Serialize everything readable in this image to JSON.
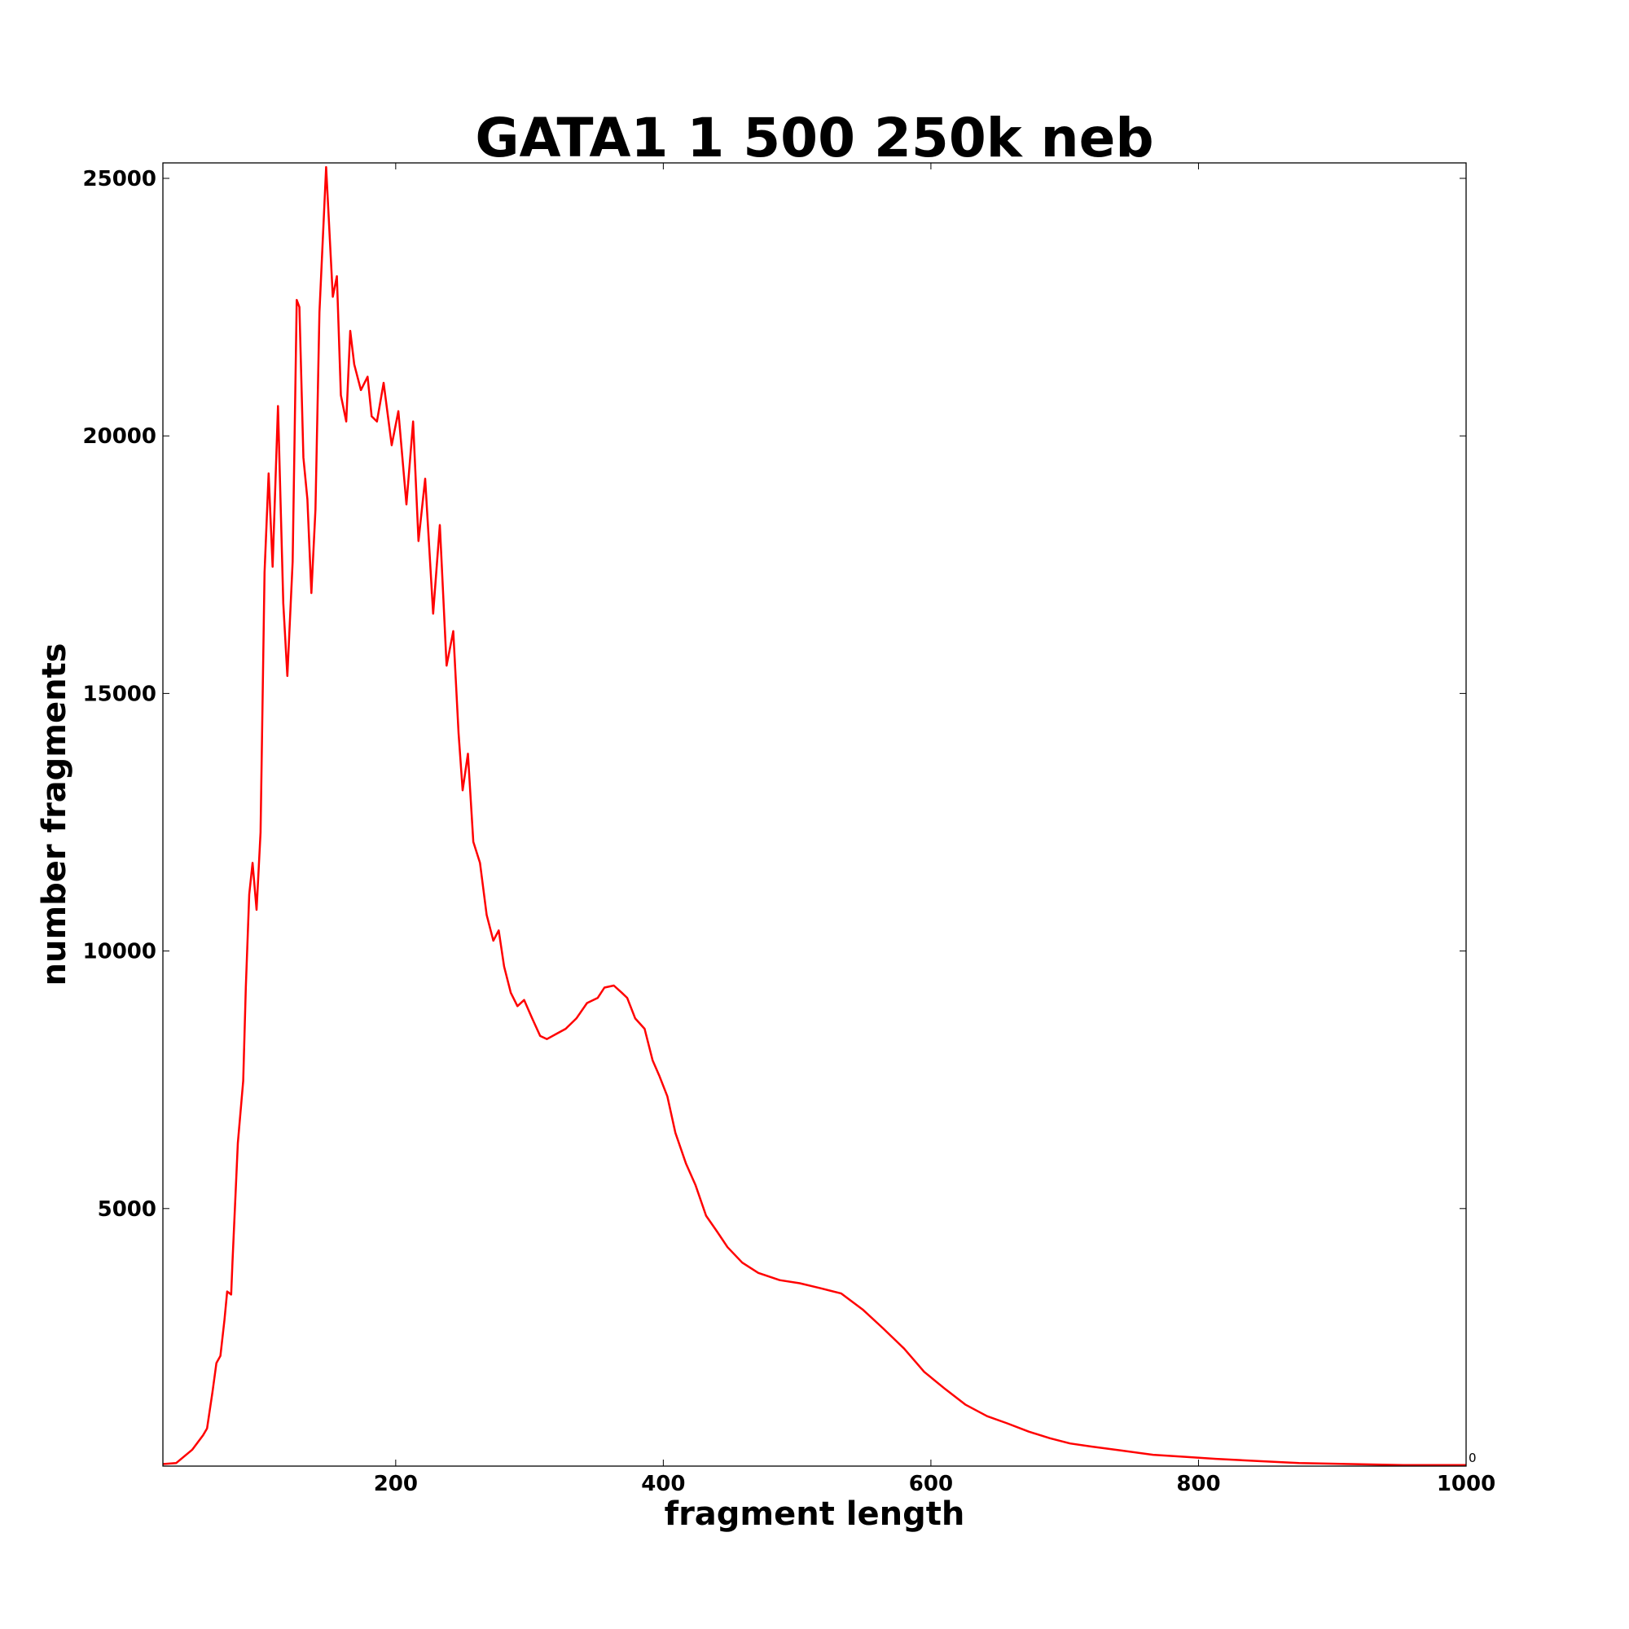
{
  "chart_data": {
    "type": "line",
    "title": "GATA1 1 500 250k neb",
    "xlabel": "fragment length",
    "ylabel": "number fragments",
    "xlim": [
      26,
      1000
    ],
    "ylim": [
      0,
      25300
    ],
    "xticks": [
      200,
      400,
      600,
      800,
      1000
    ],
    "xtick_labels": [
      "200",
      "400",
      "600",
      "800",
      "1000"
    ],
    "yticks": [
      5000,
      10000,
      15000,
      20000,
      25000
    ],
    "ytick_labels": [
      "5000",
      "10000",
      "15000",
      "20000",
      "25000"
    ],
    "corner_annotation": "0",
    "grid": false,
    "legend": "none",
    "series": [
      {
        "color": "#ff0000",
        "x": [
          26,
          36,
          48,
          56,
          59,
          63,
          66,
          69,
          72,
          74,
          77,
          78,
          82,
          86,
          88,
          90.5,
          93,
          96,
          99,
          102,
          105,
          108,
          112,
          116,
          119,
          123,
          126,
          128,
          131,
          134,
          137,
          140,
          143,
          148,
          153,
          156,
          159,
          163,
          166,
          169,
          174,
          179,
          182,
          186,
          191,
          197,
          202,
          208,
          213,
          217,
          222,
          228,
          233,
          238,
          243,
          247,
          250,
          254,
          258,
          263,
          268,
          273,
          277,
          281,
          286,
          291,
          296,
          302,
          308,
          313,
          320,
          327,
          335,
          343,
          351,
          356,
          363,
          369,
          373,
          379,
          386,
          392,
          397,
          403,
          409,
          417,
          424,
          432,
          440,
          448,
          459,
          471,
          487,
          502,
          518,
          533,
          549,
          564,
          580,
          595,
          611,
          626,
          642,
          657,
          673,
          689,
          704,
          720,
          743,
          766,
          790,
          813,
          844,
          875,
          914,
          953,
          1000
        ],
        "y": [
          40,
          60,
          320,
          600,
          730,
          1430,
          2000,
          2140,
          2840,
          3390,
          3330,
          3950,
          6270,
          7480,
          9290,
          11100,
          11710,
          10800,
          12300,
          17350,
          19270,
          17460,
          20580,
          16750,
          15340,
          17560,
          22640,
          22500,
          19580,
          18770,
          16950,
          18570,
          22400,
          25220,
          22700,
          23100,
          20790,
          20280,
          22040,
          21390,
          20890,
          21150,
          20380,
          20280,
          21030,
          19820,
          20480,
          18670,
          20280,
          17960,
          19170,
          16550,
          18270,
          15540,
          16210,
          14230,
          13120,
          13830,
          12120,
          11710,
          10700,
          10200,
          10400,
          9700,
          9190,
          8930,
          9050,
          8690,
          8350,
          8290,
          8390,
          8490,
          8690,
          8990,
          9090,
          9290,
          9330,
          9190,
          9090,
          8690,
          8490,
          7880,
          7580,
          7180,
          6470,
          5870,
          5460,
          4860,
          4560,
          4250,
          3950,
          3750,
          3610,
          3550,
          3450,
          3350,
          3040,
          2680,
          2280,
          1830,
          1490,
          1190,
          970,
          830,
          670,
          540,
          440,
          380,
          300,
          220,
          180,
          140,
          100,
          60,
          40,
          20,
          20
        ]
      }
    ]
  }
}
